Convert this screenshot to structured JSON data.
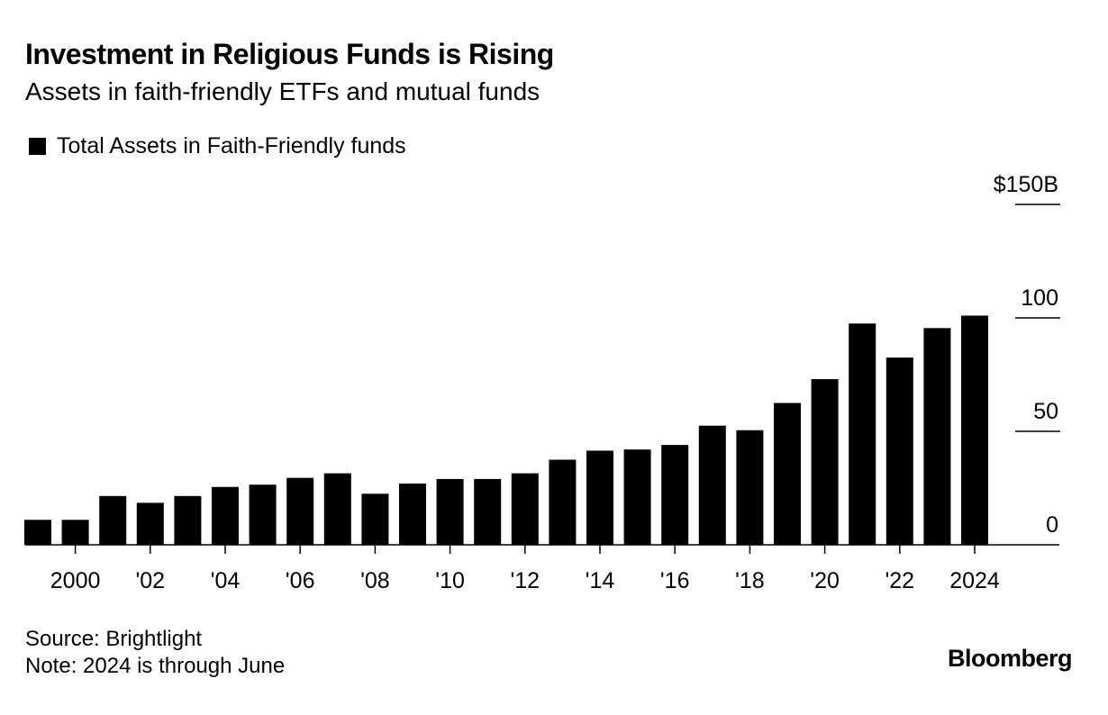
{
  "header": {
    "title": "Investment in Religious Funds is Rising",
    "subtitle": "Assets in faith-friendly ETFs and mutual funds"
  },
  "legend": {
    "label": "Total Assets in Faith-Friendly funds"
  },
  "footer": {
    "source": "Source: Brightlight",
    "note": "Note: 2024 is through June",
    "brand": "Bloomberg"
  },
  "colors": {
    "bar": "#000000",
    "background": "#ffffff"
  },
  "chart_data": {
    "type": "bar",
    "title": "Investment in Religious Funds is Rising",
    "subtitle": "Assets in faith-friendly ETFs and mutual funds",
    "categories": [
      1999,
      2000,
      2001,
      2002,
      2003,
      2004,
      2005,
      2006,
      2007,
      2008,
      2009,
      2010,
      2011,
      2012,
      2013,
      2014,
      2015,
      2016,
      2017,
      2018,
      2019,
      2020,
      2021,
      2022,
      2023,
      2024
    ],
    "series": [
      {
        "name": "Total Assets in Faith-Friendly funds",
        "values": [
          11,
          11,
          21.5,
          18.5,
          21.5,
          25.5,
          26.5,
          29.5,
          31.5,
          22.5,
          27,
          29,
          29,
          31.5,
          37.5,
          41.5,
          42,
          44,
          52.5,
          50.5,
          62.5,
          73,
          97.5,
          82.5,
          95.5,
          101
        ]
      }
    ],
    "ylim": [
      0,
      150
    ],
    "yticks": [
      0,
      50,
      100,
      150
    ],
    "ytick_labels": [
      "0",
      "50",
      "100",
      "$150B"
    ],
    "xtick_years": [
      2000,
      2002,
      2004,
      2006,
      2008,
      2010,
      2012,
      2014,
      2016,
      2018,
      2020,
      2022,
      2024
    ],
    "xtick_labels": [
      "2000",
      "'02",
      "'04",
      "'06",
      "'08",
      "'10",
      "'12",
      "'14",
      "'16",
      "'18",
      "'20",
      "'22",
      "2024"
    ],
    "xlabel": "",
    "ylabel": "",
    "grid": false,
    "legend_position": "top-left",
    "y_axis_side": "right"
  }
}
